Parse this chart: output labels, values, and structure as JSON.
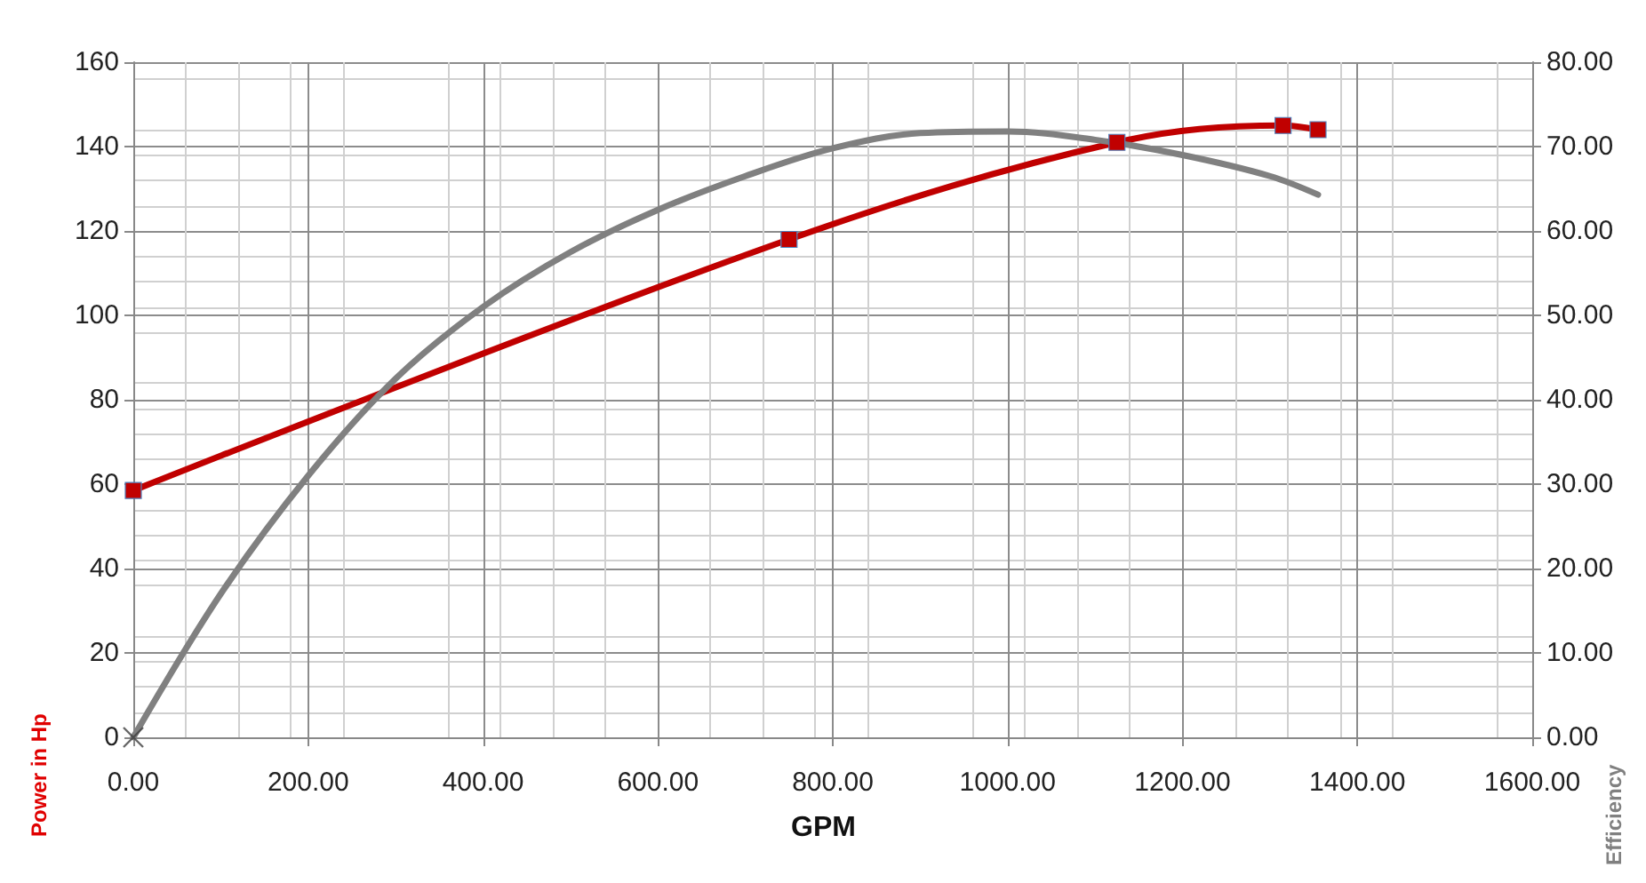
{
  "chart_data": {
    "type": "line",
    "xlabel": "GPM",
    "ylabel": "Power in Hp",
    "y2label": "Efficiency",
    "xlim": [
      0,
      1600
    ],
    "xticks": [
      {
        "value": 0,
        "label": "0.00"
      },
      {
        "value": 200,
        "label": "200.00"
      },
      {
        "value": 400,
        "label": "400.00"
      },
      {
        "value": 600,
        "label": "600.00"
      },
      {
        "value": 800,
        "label": "800.00"
      },
      {
        "value": 1000,
        "label": "1000.00"
      },
      {
        "value": 1200,
        "label": "1200.00"
      },
      {
        "value": 1400,
        "label": "1400.00"
      },
      {
        "value": 1600,
        "label": "1600.00"
      }
    ],
    "ylim": [
      0,
      160
    ],
    "yticks": [
      0,
      20,
      40,
      60,
      80,
      100,
      120,
      140,
      160
    ],
    "y2lim": [
      0,
      80
    ],
    "y2ticks": [
      {
        "value": 0,
        "label": "0.00"
      },
      {
        "value": 10,
        "label": "10.00"
      },
      {
        "value": 20,
        "label": "20.00"
      },
      {
        "value": 30,
        "label": "30.00"
      },
      {
        "value": 40,
        "label": "40.00"
      },
      {
        "value": 50,
        "label": "50.00"
      },
      {
        "value": 60,
        "label": "60.00"
      },
      {
        "value": 70,
        "label": "70.00"
      },
      {
        "value": 80,
        "label": "80.00"
      }
    ],
    "grid": true,
    "series": [
      {
        "color": "#c00000",
        "marker": "square",
        "x": [
          0,
          750,
          1125,
          1315,
          1355
        ],
        "values": [
          58.5,
          118,
          141,
          145,
          144
        ]
      },
      {
        "color": "#808080",
        "marker": "none",
        "axis": "y2",
        "x": [
          0,
          100,
          200,
          300,
          400,
          500,
          600,
          700,
          800,
          900,
          1000,
          1100,
          1200,
          1300,
          1355
        ],
        "values": [
          0,
          17,
          31,
          42.5,
          51,
          57.5,
          62.5,
          66.5,
          69.8,
          71.6,
          71.8,
          70.8,
          69,
          66.5,
          64.3
        ]
      },
      {
        "type": "scatter",
        "color": "#404040",
        "marker": "cross",
        "axis": "y2",
        "x": [
          0
        ],
        "values": [
          0
        ]
      }
    ]
  }
}
